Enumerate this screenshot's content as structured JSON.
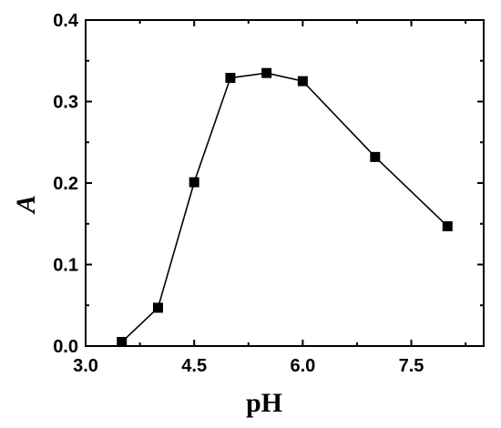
{
  "chart_data": {
    "type": "line",
    "xlabel": "pH",
    "ylabel": "A",
    "xlim": [
      3.0,
      8.5
    ],
    "ylim": [
      0.0,
      0.4
    ],
    "xticks": [
      "3.0",
      "4.5",
      "6.0",
      "7.5"
    ],
    "yticks": [
      "0.0",
      "0.1",
      "0.2",
      "0.3",
      "0.4"
    ],
    "grid": false,
    "marker": "square",
    "series": [
      {
        "x": [
          3.5,
          4.0,
          4.5,
          5.0,
          5.5,
          6.0,
          7.0,
          8.0
        ],
        "y": [
          0.005,
          0.047,
          0.201,
          0.329,
          0.335,
          0.325,
          0.232,
          0.147
        ]
      }
    ]
  }
}
